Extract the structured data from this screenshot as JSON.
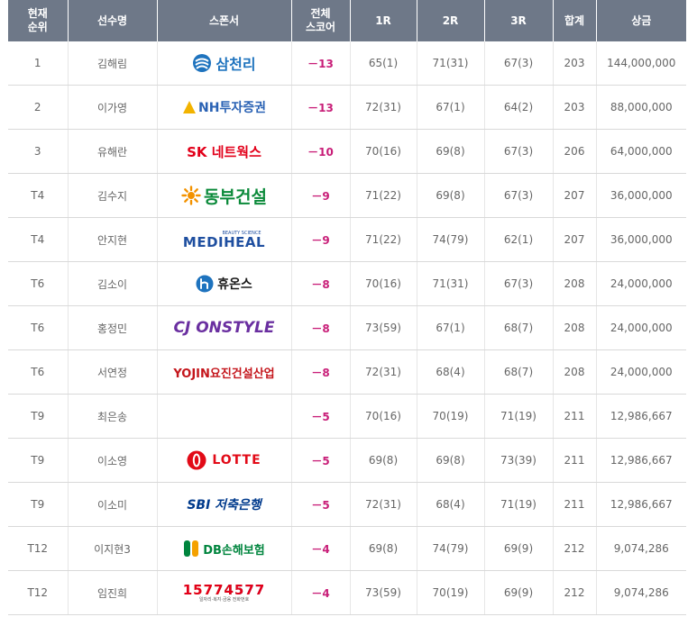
{
  "headers": {
    "rank": [
      "현재",
      "순위"
    ],
    "player": "선수명",
    "sponsor": "스폰서",
    "total": [
      "전체",
      "스코어"
    ],
    "r1": "1R",
    "r2": "2R",
    "r3": "3R",
    "sum": "합계",
    "prize": "상금"
  },
  "rows": [
    {
      "rank": "1",
      "name": "김해림",
      "sponsor": "삼천리",
      "sponsor_icon": "samchully-logo",
      "score": "－13",
      "r1": "65(1)",
      "r2": "71(31)",
      "r3": "67(3)",
      "sum": "203",
      "prize": "144,000,000"
    },
    {
      "rank": "2",
      "name": "이가영",
      "sponsor": "NH투자증권",
      "sponsor_icon": "nh-logo",
      "score": "－13",
      "r1": "72(31)",
      "r2": "67(1)",
      "r3": "64(2)",
      "sum": "203",
      "prize": "88,000,000"
    },
    {
      "rank": "3",
      "name": "유해란",
      "sponsor": "SK 네트웍스",
      "sponsor_icon": "sk-logo",
      "score": "－10",
      "r1": "70(16)",
      "r2": "69(8)",
      "r3": "67(3)",
      "sum": "206",
      "prize": "64,000,000"
    },
    {
      "rank": "T4",
      "name": "김수지",
      "sponsor": "동부건설",
      "sponsor_icon": "dongbu-logo",
      "score": "－9",
      "r1": "71(22)",
      "r2": "69(8)",
      "r3": "67(3)",
      "sum": "207",
      "prize": "36,000,000"
    },
    {
      "rank": "T4",
      "name": "안지현",
      "sponsor": "MEDIHEAL",
      "sponsor_subtext": "BEAUTY SCIENCE",
      "sponsor_icon": "mediheal-logo",
      "score": "－9",
      "r1": "71(22)",
      "r2": "74(79)",
      "r3": "62(1)",
      "sum": "207",
      "prize": "36,000,000"
    },
    {
      "rank": "T6",
      "name": "김소이",
      "sponsor": "휴온스",
      "sponsor_icon": "huons-logo",
      "score": "－8",
      "r1": "70(16)",
      "r2": "71(31)",
      "r3": "67(3)",
      "sum": "208",
      "prize": "24,000,000"
    },
    {
      "rank": "T6",
      "name": "홍정민",
      "sponsor": "CJ ONSTYLE",
      "sponsor_icon": "cj-onstyle-logo",
      "score": "－8",
      "r1": "73(59)",
      "r2": "67(1)",
      "r3": "68(7)",
      "sum": "208",
      "prize": "24,000,000"
    },
    {
      "rank": "T6",
      "name": "서연정",
      "sponsor": "YOJIN요진건설산업",
      "sponsor_icon": "yojin-logo",
      "score": "－8",
      "r1": "72(31)",
      "r2": "68(4)",
      "r3": "68(7)",
      "sum": "208",
      "prize": "24,000,000"
    },
    {
      "rank": "T9",
      "name": "최은송",
      "sponsor": "",
      "sponsor_icon": "",
      "score": "－5",
      "r1": "70(16)",
      "r2": "70(19)",
      "r3": "71(19)",
      "sum": "211",
      "prize": "12,986,667"
    },
    {
      "rank": "T9",
      "name": "이소영",
      "sponsor": "LOTTE",
      "sponsor_icon": "lotte-logo",
      "score": "－5",
      "r1": "69(8)",
      "r2": "69(8)",
      "r3": "73(39)",
      "sum": "211",
      "prize": "12,986,667"
    },
    {
      "rank": "T9",
      "name": "이소미",
      "sponsor": "SBI 저축은행",
      "sponsor_icon": "sbi-logo",
      "score": "－5",
      "r1": "72(31)",
      "r2": "68(4)",
      "r3": "71(19)",
      "sum": "211",
      "prize": "12,986,667"
    },
    {
      "rank": "T12",
      "name": "이지현3",
      "sponsor": "DB손해보험",
      "sponsor_icon": "db-logo",
      "score": "－4",
      "r1": "69(8)",
      "r2": "74(79)",
      "r3": "69(9)",
      "sum": "212",
      "prize": "9,074,286"
    },
    {
      "rank": "T12",
      "name": "임진희",
      "sponsor": "15774577",
      "sponsor_subtext": "일자리·복지·금융 전화번호",
      "sponsor_icon": "15774577-logo",
      "score": "－4",
      "r1": "73(59)",
      "r2": "70(19)",
      "r3": "69(9)",
      "sum": "212",
      "prize": "9,074,286"
    }
  ],
  "colors": {
    "header_bg": "#6e7888",
    "score": "#c81e78",
    "samchully": "#1e73be",
    "nh_blue": "#2a62b4",
    "nh_yellow": "#f2b300",
    "sk_red": "#e2001a",
    "sk_orange": "#f08200",
    "dongbu_green": "#0b8a3a",
    "dongbu_orange": "#f39200",
    "mediheal": "#1f4fa0",
    "huons": "#1a1a1a",
    "cj": "#6a2fa0",
    "yojin_red": "#c4161c",
    "lotte": "#e20a17",
    "sbi_blue": "#003a8c",
    "db_green": "#00853e"
  }
}
